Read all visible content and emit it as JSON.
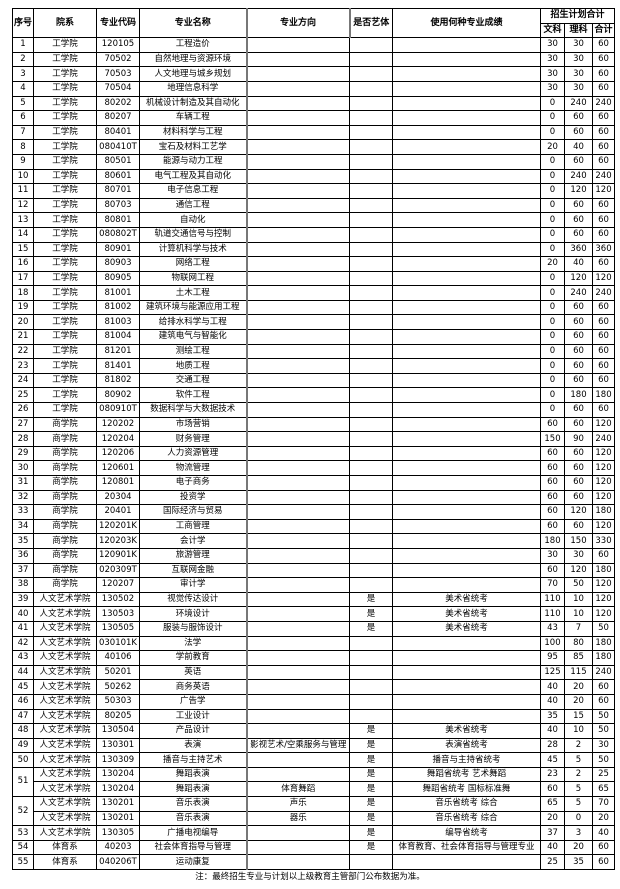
{
  "headers": {
    "no": "序号",
    "dept": "院系",
    "code": "专业代码",
    "name": "专业名称",
    "direction": "专业方向",
    "art": "是否艺体",
    "score": "使用何种专业成绩",
    "plan": "招生计划合计",
    "arts": "文科",
    "science": "理科",
    "total": "合计"
  },
  "rows": [
    {
      "no": "1",
      "dept": "工学院",
      "code": "120105",
      "name": "工程造价",
      "direction": "",
      "art": "",
      "score": "",
      "arts": "30",
      "science": "30",
      "total": "60"
    },
    {
      "no": "2",
      "dept": "工学院",
      "code": "70502",
      "name": "自然地理与资源环境",
      "direction": "",
      "art": "",
      "score": "",
      "arts": "30",
      "science": "30",
      "total": "60"
    },
    {
      "no": "3",
      "dept": "工学院",
      "code": "70503",
      "name": "人文地理与城乡规划",
      "direction": "",
      "art": "",
      "score": "",
      "arts": "30",
      "science": "30",
      "total": "60"
    },
    {
      "no": "4",
      "dept": "工学院",
      "code": "70504",
      "name": "地理信息科学",
      "direction": "",
      "art": "",
      "score": "",
      "arts": "30",
      "science": "30",
      "total": "60"
    },
    {
      "no": "5",
      "dept": "工学院",
      "code": "80202",
      "name": "机械设计制造及其自动化",
      "direction": "",
      "art": "",
      "score": "",
      "arts": "0",
      "science": "240",
      "total": "240"
    },
    {
      "no": "6",
      "dept": "工学院",
      "code": "80207",
      "name": "车辆工程",
      "direction": "",
      "art": "",
      "score": "",
      "arts": "0",
      "science": "60",
      "total": "60"
    },
    {
      "no": "7",
      "dept": "工学院",
      "code": "80401",
      "name": "材料科学与工程",
      "direction": "",
      "art": "",
      "score": "",
      "arts": "0",
      "science": "60",
      "total": "60"
    },
    {
      "no": "8",
      "dept": "工学院",
      "code": "080410T",
      "name": "宝石及材料工艺学",
      "direction": "",
      "art": "",
      "score": "",
      "arts": "20",
      "science": "40",
      "total": "60"
    },
    {
      "no": "9",
      "dept": "工学院",
      "code": "80501",
      "name": "能源与动力工程",
      "direction": "",
      "art": "",
      "score": "",
      "arts": "0",
      "science": "60",
      "total": "60"
    },
    {
      "no": "10",
      "dept": "工学院",
      "code": "80601",
      "name": "电气工程及其自动化",
      "direction": "",
      "art": "",
      "score": "",
      "arts": "0",
      "science": "240",
      "total": "240"
    },
    {
      "no": "11",
      "dept": "工学院",
      "code": "80701",
      "name": "电子信息工程",
      "direction": "",
      "art": "",
      "score": "",
      "arts": "0",
      "science": "120",
      "total": "120"
    },
    {
      "no": "12",
      "dept": "工学院",
      "code": "80703",
      "name": "通信工程",
      "direction": "",
      "art": "",
      "score": "",
      "arts": "0",
      "science": "60",
      "total": "60"
    },
    {
      "no": "13",
      "dept": "工学院",
      "code": "80801",
      "name": "自动化",
      "direction": "",
      "art": "",
      "score": "",
      "arts": "0",
      "science": "60",
      "total": "60"
    },
    {
      "no": "14",
      "dept": "工学院",
      "code": "080802T",
      "name": "轨道交通信号与控制",
      "direction": "",
      "art": "",
      "score": "",
      "arts": "0",
      "science": "60",
      "total": "60"
    },
    {
      "no": "15",
      "dept": "工学院",
      "code": "80901",
      "name": "计算机科学与技术",
      "direction": "",
      "art": "",
      "score": "",
      "arts": "0",
      "science": "360",
      "total": "360"
    },
    {
      "no": "16",
      "dept": "工学院",
      "code": "80903",
      "name": "网络工程",
      "direction": "",
      "art": "",
      "score": "",
      "arts": "20",
      "science": "40",
      "total": "60"
    },
    {
      "no": "17",
      "dept": "工学院",
      "code": "80905",
      "name": "物联网工程",
      "direction": "",
      "art": "",
      "score": "",
      "arts": "0",
      "science": "120",
      "total": "120"
    },
    {
      "no": "18",
      "dept": "工学院",
      "code": "81001",
      "name": "土木工程",
      "direction": "",
      "art": "",
      "score": "",
      "arts": "0",
      "science": "240",
      "total": "240"
    },
    {
      "no": "19",
      "dept": "工学院",
      "code": "81002",
      "name": "建筑环境与能源应用工程",
      "direction": "",
      "art": "",
      "score": "",
      "arts": "0",
      "science": "60",
      "total": "60"
    },
    {
      "no": "20",
      "dept": "工学院",
      "code": "81003",
      "name": "给排水科学与工程",
      "direction": "",
      "art": "",
      "score": "",
      "arts": "0",
      "science": "60",
      "total": "60"
    },
    {
      "no": "21",
      "dept": "工学院",
      "code": "81004",
      "name": "建筑电气与智能化",
      "direction": "",
      "art": "",
      "score": "",
      "arts": "0",
      "science": "60",
      "total": "60"
    },
    {
      "no": "22",
      "dept": "工学院",
      "code": "81201",
      "name": "测绘工程",
      "direction": "",
      "art": "",
      "score": "",
      "arts": "0",
      "science": "60",
      "total": "60"
    },
    {
      "no": "23",
      "dept": "工学院",
      "code": "81401",
      "name": "地质工程",
      "direction": "",
      "art": "",
      "score": "",
      "arts": "0",
      "science": "60",
      "total": "60"
    },
    {
      "no": "24",
      "dept": "工学院",
      "code": "81802",
      "name": "交通工程",
      "direction": "",
      "art": "",
      "score": "",
      "arts": "0",
      "science": "60",
      "total": "60"
    },
    {
      "no": "25",
      "dept": "工学院",
      "code": "80902",
      "name": "软件工程",
      "direction": "",
      "art": "",
      "score": "",
      "arts": "0",
      "science": "180",
      "total": "180"
    },
    {
      "no": "26",
      "dept": "工学院",
      "code": "080910T",
      "name": "数据科学与大数据技术",
      "direction": "",
      "art": "",
      "score": "",
      "arts": "0",
      "science": "60",
      "total": "60"
    },
    {
      "no": "27",
      "dept": "商学院",
      "code": "120202",
      "name": "市场营销",
      "direction": "",
      "art": "",
      "score": "",
      "arts": "60",
      "science": "60",
      "total": "120"
    },
    {
      "no": "28",
      "dept": "商学院",
      "code": "120204",
      "name": "财务管理",
      "direction": "",
      "art": "",
      "score": "",
      "arts": "150",
      "science": "90",
      "total": "240"
    },
    {
      "no": "29",
      "dept": "商学院",
      "code": "120206",
      "name": "人力资源管理",
      "direction": "",
      "art": "",
      "score": "",
      "arts": "60",
      "science": "60",
      "total": "120"
    },
    {
      "no": "30",
      "dept": "商学院",
      "code": "120601",
      "name": "物流管理",
      "direction": "",
      "art": "",
      "score": "",
      "arts": "60",
      "science": "60",
      "total": "120"
    },
    {
      "no": "31",
      "dept": "商学院",
      "code": "120801",
      "name": "电子商务",
      "direction": "",
      "art": "",
      "score": "",
      "arts": "60",
      "science": "60",
      "total": "120"
    },
    {
      "no": "32",
      "dept": "商学院",
      "code": "20304",
      "name": "投资学",
      "direction": "",
      "art": "",
      "score": "",
      "arts": "60",
      "science": "60",
      "total": "120"
    },
    {
      "no": "33",
      "dept": "商学院",
      "code": "20401",
      "name": "国际经济与贸易",
      "direction": "",
      "art": "",
      "score": "",
      "arts": "60",
      "science": "120",
      "total": "180"
    },
    {
      "no": "34",
      "dept": "商学院",
      "code": "120201K",
      "name": "工商管理",
      "direction": "",
      "art": "",
      "score": "",
      "arts": "60",
      "science": "60",
      "total": "120"
    },
    {
      "no": "35",
      "dept": "商学院",
      "code": "120203K",
      "name": "会计学",
      "direction": "",
      "art": "",
      "score": "",
      "arts": "180",
      "science": "150",
      "total": "330"
    },
    {
      "no": "36",
      "dept": "商学院",
      "code": "120901K",
      "name": "旅游管理",
      "direction": "",
      "art": "",
      "score": "",
      "arts": "30",
      "science": "30",
      "total": "60"
    },
    {
      "no": "37",
      "dept": "商学院",
      "code": "020309T",
      "name": "互联网金融",
      "direction": "",
      "art": "",
      "score": "",
      "arts": "60",
      "science": "120",
      "total": "180"
    },
    {
      "no": "38",
      "dept": "商学院",
      "code": "120207",
      "name": "审计学",
      "direction": "",
      "art": "",
      "score": "",
      "arts": "70",
      "science": "50",
      "total": "120"
    },
    {
      "no": "39",
      "dept": "人文艺术学院",
      "code": "130502",
      "name": "视觉传达设计",
      "direction": "",
      "art": "是",
      "score": "美术省统考",
      "arts": "110",
      "science": "10",
      "total": "120"
    },
    {
      "no": "40",
      "dept": "人文艺术学院",
      "code": "130503",
      "name": "环境设计",
      "direction": "",
      "art": "是",
      "score": "美术省统考",
      "arts": "110",
      "science": "10",
      "total": "120"
    },
    {
      "no": "41",
      "dept": "人文艺术学院",
      "code": "130505",
      "name": "服装与服饰设计",
      "direction": "",
      "art": "是",
      "score": "美术省统考",
      "arts": "43",
      "science": "7",
      "total": "50"
    },
    {
      "no": "42",
      "dept": "人文艺术学院",
      "code": "030101K",
      "name": "法学",
      "direction": "",
      "art": "",
      "score": "",
      "arts": "100",
      "science": "80",
      "total": "180"
    },
    {
      "no": "43",
      "dept": "人文艺术学院",
      "code": "40106",
      "name": "学前教育",
      "direction": "",
      "art": "",
      "score": "",
      "arts": "95",
      "science": "85",
      "total": "180"
    },
    {
      "no": "44",
      "dept": "人文艺术学院",
      "code": "50201",
      "name": "英语",
      "direction": "",
      "art": "",
      "score": "",
      "arts": "125",
      "science": "115",
      "total": "240"
    },
    {
      "no": "45",
      "dept": "人文艺术学院",
      "code": "50262",
      "name": "商务英语",
      "direction": "",
      "art": "",
      "score": "",
      "arts": "40",
      "science": "20",
      "total": "60"
    },
    {
      "no": "46",
      "dept": "人文艺术学院",
      "code": "50303",
      "name": "广告学",
      "direction": "",
      "art": "",
      "score": "",
      "arts": "40",
      "science": "20",
      "total": "60"
    },
    {
      "no": "47",
      "dept": "人文艺术学院",
      "code": "80205",
      "name": "工业设计",
      "direction": "",
      "art": "",
      "score": "",
      "arts": "35",
      "science": "15",
      "total": "50"
    },
    {
      "no": "48",
      "dept": "人文艺术学院",
      "code": "130504",
      "name": "产品设计",
      "direction": "",
      "art": "是",
      "score": "美术省统考",
      "arts": "40",
      "science": "10",
      "total": "50"
    },
    {
      "no": "49",
      "dept": "人文艺术学院",
      "code": "130301",
      "name": "表演",
      "direction": "影视艺术/空乘服务与管理",
      "art": "是",
      "score": "表演省统考",
      "arts": "28",
      "science": "2",
      "total": "30"
    },
    {
      "no": "50",
      "dept": "人文艺术学院",
      "code": "130309",
      "name": "播音与主持艺术",
      "direction": "",
      "art": "是",
      "score": "播音与主持省统考",
      "arts": "45",
      "science": "5",
      "total": "50"
    },
    {
      "no": "51",
      "dept": "人文艺术学院",
      "code": "130204",
      "name": "舞蹈表演",
      "direction": "",
      "art": "是",
      "score": "舞蹈省统考 艺术舞蹈",
      "arts": "23",
      "science": "2",
      "total": "25"
    },
    {
      "no": "51",
      "dept": "人文艺术学院",
      "code": "130204",
      "name": "舞蹈表演",
      "direction": "体育舞蹈",
      "art": "是",
      "score": "舞蹈省统考 国标标准舞",
      "arts": "60",
      "science": "5",
      "total": "65"
    },
    {
      "no": "52",
      "dept": "人文艺术学院",
      "code": "130201",
      "name": "音乐表演",
      "direction": "声乐",
      "art": "是",
      "score": "音乐省统考 综合",
      "arts": "65",
      "science": "5",
      "total": "70"
    },
    {
      "no": "52",
      "dept": "人文艺术学院",
      "code": "130201",
      "name": "音乐表演",
      "direction": "器乐",
      "art": "是",
      "score": "音乐省统考 综合",
      "arts": "20",
      "science": "0",
      "total": "20"
    },
    {
      "no": "53",
      "dept": "人文艺术学院",
      "code": "130305",
      "name": "广播电视编导",
      "direction": "",
      "art": "是",
      "score": "编导省统考",
      "arts": "37",
      "science": "3",
      "total": "40"
    },
    {
      "no": "54",
      "dept": "体育系",
      "code": "40203",
      "name": "社会体育指导与管理",
      "direction": "",
      "art": "是",
      "score": "体育教育、社会体育指导与管理专业",
      "arts": "40",
      "science": "20",
      "total": "60"
    },
    {
      "no": "55",
      "dept": "体育系",
      "code": "040206T",
      "name": "运动康复",
      "direction": "",
      "art": "",
      "score": "",
      "arts": "25",
      "science": "35",
      "total": "60"
    }
  ],
  "note": "注：最终招生专业与计划以上级教育主管部门公布数据为准。"
}
